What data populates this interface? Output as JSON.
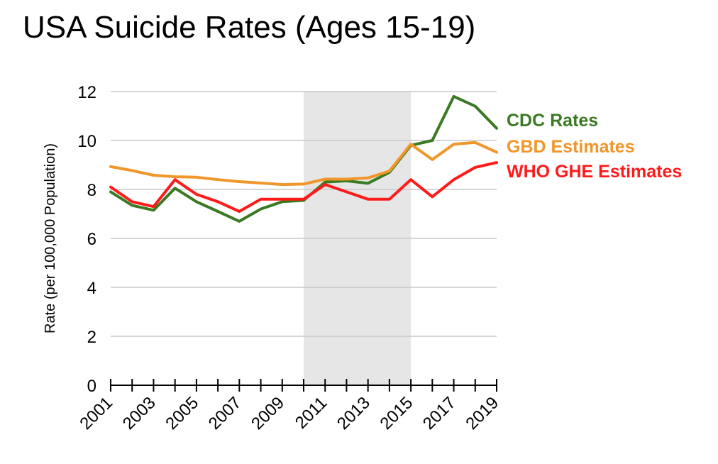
{
  "title": "USA Suicide Rates (Ages 15-19)",
  "chart_data": {
    "type": "line",
    "title": "USA Suicide Rates (Ages 15-19)",
    "xlabel": "",
    "ylabel": "Rate (per 100,000 Population)",
    "ylim": [
      0,
      12
    ],
    "yticks": [
      "0",
      "2",
      "4",
      "6",
      "8",
      "10",
      "12"
    ],
    "xlim": [
      2001,
      2019
    ],
    "xticks": [
      "2001",
      "2003",
      "2005",
      "2007",
      "2009",
      "2011",
      "2013",
      "2015",
      "2017",
      "2019"
    ],
    "x": [
      2001,
      2002,
      2003,
      2004,
      2005,
      2006,
      2007,
      2008,
      2009,
      2010,
      2011,
      2012,
      2013,
      2014,
      2015,
      2016,
      2017,
      2018,
      2019
    ],
    "grid": true,
    "legend_placement": "right",
    "shaded_region": {
      "x_start": 2010,
      "x_end": 2015,
      "color": "#e6e6e6"
    },
    "series": [
      {
        "name": "CDC Rates",
        "color": "#3a7a23",
        "values": [
          7.9,
          7.35,
          7.15,
          8.05,
          7.5,
          7.1,
          6.7,
          7.2,
          7.5,
          7.55,
          8.3,
          8.35,
          8.25,
          8.7,
          9.8,
          10.0,
          11.8,
          11.4,
          10.5
        ]
      },
      {
        "name": "GBD Estimates",
        "color": "#f0962a",
        "values": [
          8.93,
          8.77,
          8.58,
          8.52,
          8.5,
          8.4,
          8.32,
          8.26,
          8.2,
          8.22,
          8.42,
          8.42,
          8.47,
          8.75,
          9.85,
          9.22,
          9.85,
          9.92,
          9.52
        ]
      },
      {
        "name": "WHO GHE Estimates",
        "color": "#ff1a1a",
        "values": [
          8.1,
          7.5,
          7.3,
          8.4,
          7.8,
          7.5,
          7.1,
          7.6,
          7.6,
          7.6,
          8.2,
          7.9,
          7.6,
          7.6,
          8.4,
          7.7,
          8.4,
          8.9,
          9.1
        ]
      }
    ]
  }
}
